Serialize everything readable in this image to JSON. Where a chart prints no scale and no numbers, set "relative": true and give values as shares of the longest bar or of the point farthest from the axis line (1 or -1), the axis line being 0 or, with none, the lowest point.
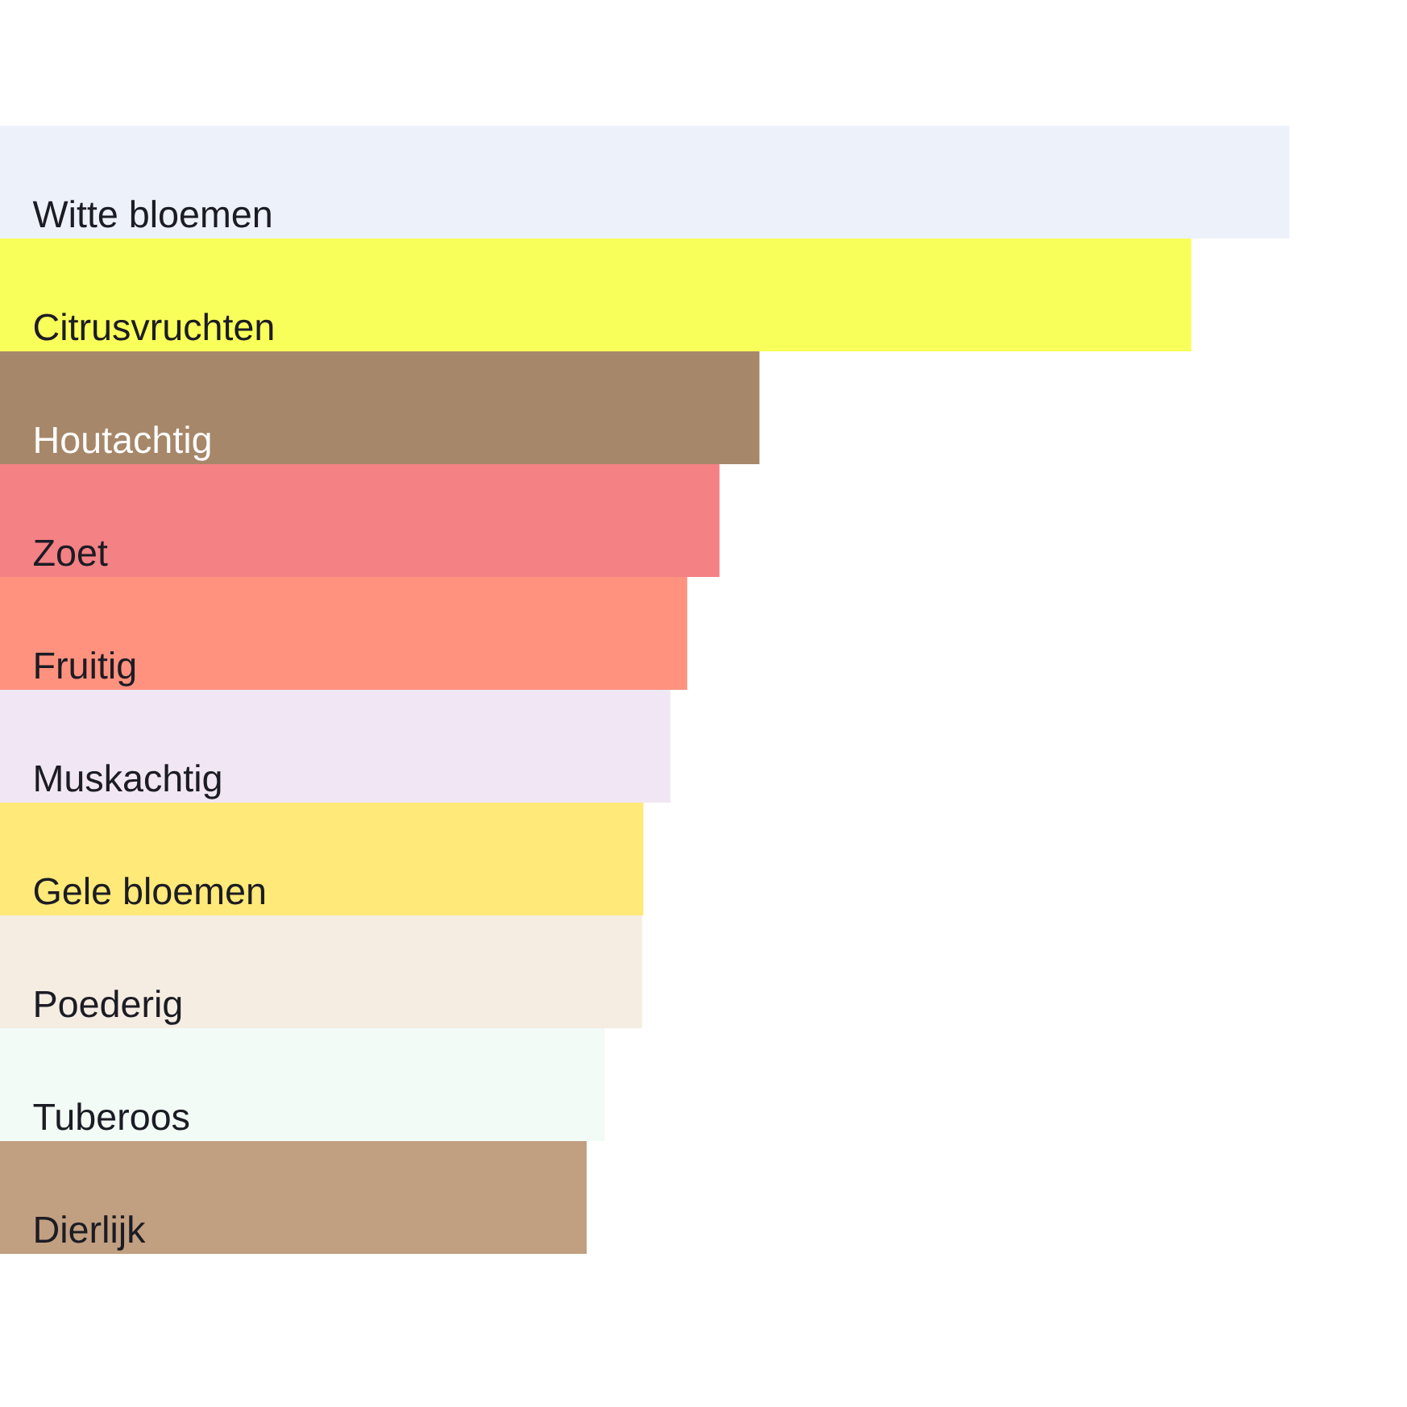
{
  "chart_data": {
    "type": "bar",
    "orientation": "horizontal",
    "relative": true,
    "categories": [
      "Witte bloemen",
      "Citrusvruchten",
      "Houtachtig",
      "Zoet",
      "Fruitig",
      "Muskachtig",
      "Gele bloemen",
      "Poederig",
      "Tuberoos",
      "Dierlijk"
    ],
    "values": [
      1,
      0.924,
      0.589,
      0.558,
      0.533,
      0.52,
      0.499,
      0.498,
      0.469,
      0.455
    ],
    "colors": [
      "#edf1fa",
      "#f9ff5a",
      "#a68769",
      "#f48184",
      "#ff927e",
      "#f1e6f3",
      "#ffe978",
      "#f5ece2",
      "#f2fbf6",
      "#c19f81"
    ]
  }
}
